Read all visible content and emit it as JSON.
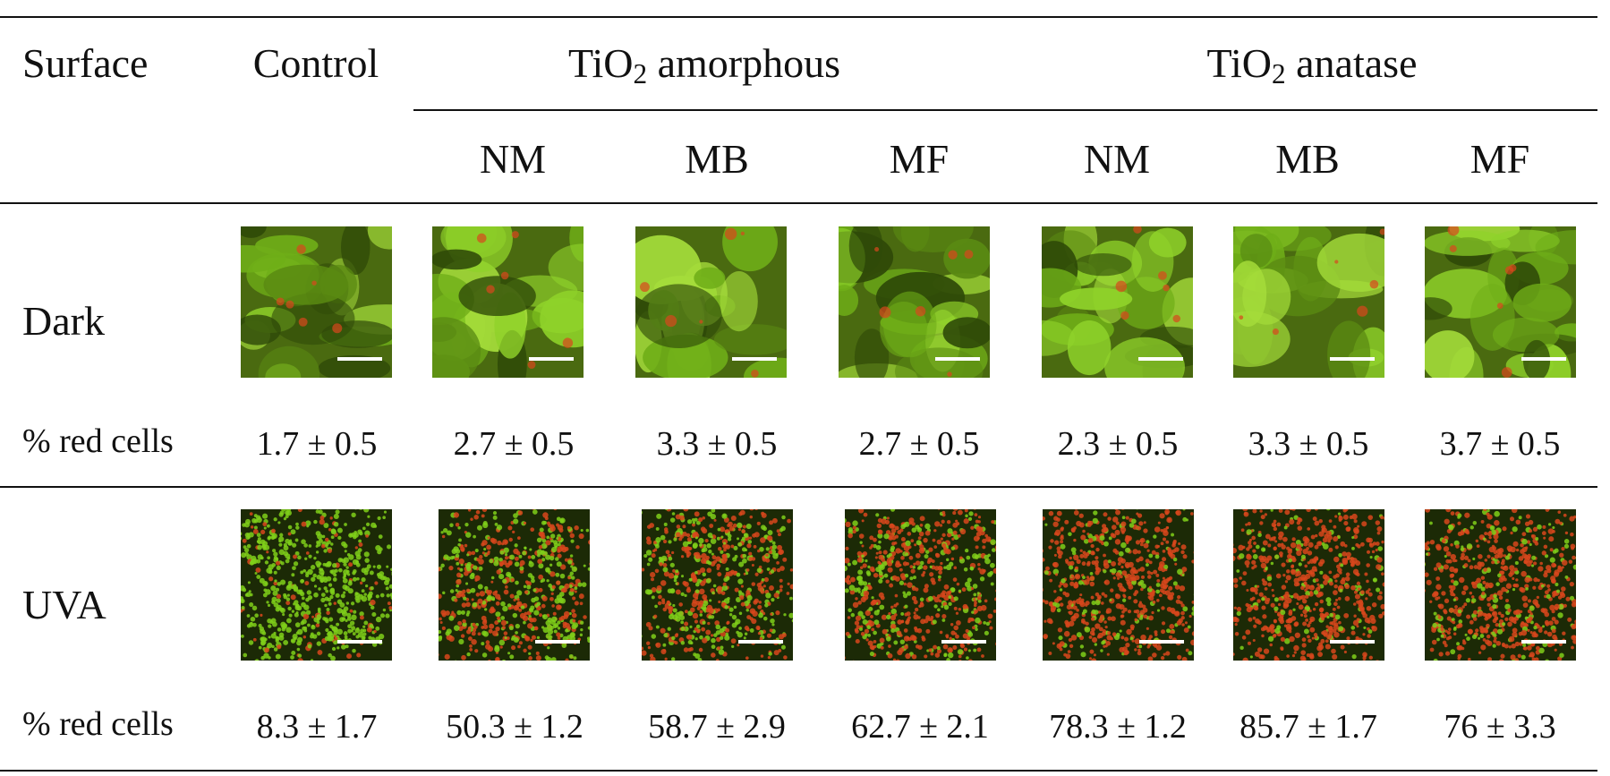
{
  "header": {
    "surface": "Surface",
    "control": "Control",
    "group_amorphous": {
      "prefix": "TiO",
      "sub": "2",
      "suffix": " amorphous"
    },
    "group_anatase": {
      "prefix": "TiO",
      "sub": "2",
      "suffix": " anatase"
    },
    "sub_columns": [
      "NM",
      "MB",
      "MF",
      "NM",
      "MB",
      "MF"
    ]
  },
  "rows": [
    {
      "label": "Dark",
      "value_label": "% red cells",
      "values": [
        "1.7 ± 0.5",
        "2.7 ± 0.5",
        "3.3 ± 0.5",
        "2.7 ± 0.5",
        "2.3 ± 0.5",
        "3.3 ± 0.5",
        "3.7 ± 0.5"
      ],
      "image_style": "dark-condition micrograph (mostly green, few red cells)"
    },
    {
      "label": "UVA",
      "value_label": "% red cells",
      "values": [
        "8.3 ± 1.7",
        "50.3 ± 1.2",
        "58.7 ± 2.9",
        "62.7 ± 2.1",
        "78.3 ± 1.2",
        "85.7 ± 1.7",
        "76 ± 3.3"
      ],
      "image_style": "UVA-condition micrograph (many red cells)"
    }
  ],
  "colors": {
    "green_stain": "#7fcf1a",
    "red_stain": "#d8471c",
    "background_dark": "#1c2a06",
    "scale_bar": "#ffffff",
    "rule": "#111111"
  }
}
